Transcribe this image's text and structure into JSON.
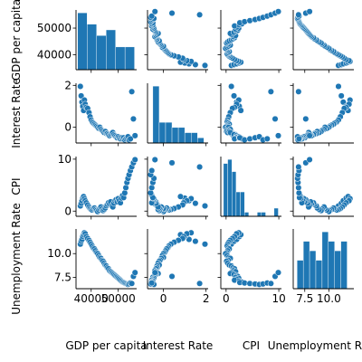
{
  "chart_data": {
    "type": "pairplot",
    "colors": {
      "marker": "#1f77b4",
      "bar": "#1f77b4",
      "marker_edge": "#ffffff"
    },
    "variables": [
      {
        "key": "gdp",
        "label": "GDP per capita",
        "range": [
          34400,
          56800
        ],
        "ticks": [
          40000,
          50000
        ],
        "tick_labels_y": [
          "40000",
          "50000"
        ],
        "tick_labels_x": [
          "40000",
          "50000"
        ]
      },
      {
        "key": "rate",
        "label": "Interest Rate",
        "range": [
          -0.75,
          2.1
        ],
        "ticks": [
          0,
          2
        ],
        "tick_labels_y": [
          "0",
          "2"
        ],
        "tick_labels_x": [
          "0",
          "2"
        ]
      },
      {
        "key": "cpi",
        "label": "CPI",
        "range": [
          -1.0,
          10.5
        ],
        "ticks": [
          0,
          10
        ],
        "tick_labels_y": [
          "0",
          "10"
        ],
        "tick_labels_x": [
          "0",
          "10"
        ]
      },
      {
        "key": "unemp",
        "label": "Unemployment Rate",
        "range": [
          6.3,
          12.6
        ],
        "ticks": [
          7.5,
          10.0
        ],
        "tick_labels_y": [
          "7.5",
          "10.0"
        ],
        "tick_labels_x": [
          "7.5",
          "10.0"
        ]
      }
    ],
    "histograms": [
      {
        "variable": "gdp",
        "bin_edges": [
          35000,
          38500,
          42000,
          45500,
          49000,
          52500,
          56000
        ],
        "counts": [
          10,
          8,
          6,
          7,
          4,
          4
        ]
      },
      {
        "variable": "rate",
        "bin_edges": [
          -0.5,
          -0.2,
          0.1,
          0.4,
          0.7,
          1.0,
          1.3,
          1.6,
          1.9
        ],
        "counts": [
          11,
          4,
          4,
          3,
          3,
          2,
          2,
          1
        ]
      },
      {
        "variable": "cpi",
        "bin_edges": [
          -0.5,
          0.3,
          1.1,
          1.9,
          2.7,
          3.5,
          4.3,
          5.1,
          5.9,
          6.7,
          7.5,
          8.3,
          9.1,
          9.9
        ],
        "counts": [
          13,
          14,
          11,
          6,
          6,
          1,
          0,
          0,
          1,
          1,
          0,
          0,
          2
        ]
      },
      {
        "variable": "unemp",
        "bin_edges": [
          6.7,
          7.35,
          8.0,
          8.65,
          9.3,
          9.95,
          10.6,
          11.25,
          11.9
        ],
        "counts": [
          3,
          5,
          4,
          3,
          6,
          5,
          4,
          5
        ]
      }
    ],
    "points": {
      "gdp": [
        36000,
        36300,
        36600,
        36900,
        37200,
        37500,
        37800,
        38200,
        38700,
        39200,
        39600,
        40000,
        40400,
        40800,
        41200,
        41600,
        42000,
        42400,
        42800,
        43200,
        43600,
        44000,
        44400,
        44800,
        45200,
        45600,
        46000,
        46400,
        46800,
        47200,
        47600,
        48000,
        48400,
        48800,
        49200,
        49600,
        50000,
        50400,
        50800,
        51200,
        51600,
        52000,
        52400,
        52800,
        53200,
        53600,
        54000,
        54500,
        55000,
        55600,
        56200
      ],
      "rate": [
        1.95,
        1.5,
        1.2,
        1.0,
        0.8,
        1.3,
        1.1,
        0.95,
        0.9,
        0.7,
        0.5,
        0.35,
        0.25,
        0.2,
        0.15,
        0.1,
        0.05,
        0.0,
        -0.05,
        0.0,
        -0.1,
        -0.15,
        -0.2,
        -0.25,
        -0.2,
        -0.3,
        -0.3,
        -0.35,
        -0.4,
        -0.35,
        -0.3,
        -0.25,
        -0.35,
        -0.4,
        -0.45,
        -0.5,
        -0.45,
        -0.5,
        -0.55,
        -0.5,
        -0.55,
        -0.5,
        -0.6,
        -0.55,
        -0.5,
        -0.45,
        -0.6,
        -0.55,
        1.7,
        0.4,
        -0.4
      ],
      "cpi": [
        1.0,
        1.5,
        2.0,
        2.5,
        2.8,
        2.4,
        2.0,
        1.6,
        1.2,
        0.8,
        0.5,
        0.3,
        0.2,
        0.4,
        0.6,
        0.3,
        0.1,
        -0.1,
        0.2,
        0.5,
        0.8,
        0.4,
        0.1,
        0.3,
        0.6,
        1.0,
        1.3,
        1.6,
        1.4,
        1.8,
        1.0,
        0.8,
        1.5,
        2.0,
        2.2,
        1.8,
        2.4,
        2.0,
        1.6,
        2.5,
        3.0,
        2.6,
        3.5,
        4.5,
        5.5,
        6.3,
        7.0,
        7.8,
        8.5,
        9.3,
        9.9
      ],
      "unemp": [
        11.0,
        11.3,
        11.5,
        11.8,
        12.0,
        12.2,
        12.1,
        11.8,
        11.6,
        11.4,
        11.2,
        11.0,
        10.8,
        10.6,
        10.5,
        10.3,
        10.1,
        10.0,
        9.8,
        9.6,
        9.5,
        9.3,
        9.2,
        9.0,
        8.8,
        8.7,
        8.5,
        8.4,
        8.2,
        8.1,
        8.0,
        7.9,
        7.8,
        7.7,
        7.6,
        7.5,
        7.4,
        7.3,
        7.2,
        7.1,
        7.0,
        6.95,
        6.9,
        6.85,
        6.8,
        6.75,
        6.8,
        6.9,
        6.85,
        7.6,
        8.0
      ]
    }
  }
}
